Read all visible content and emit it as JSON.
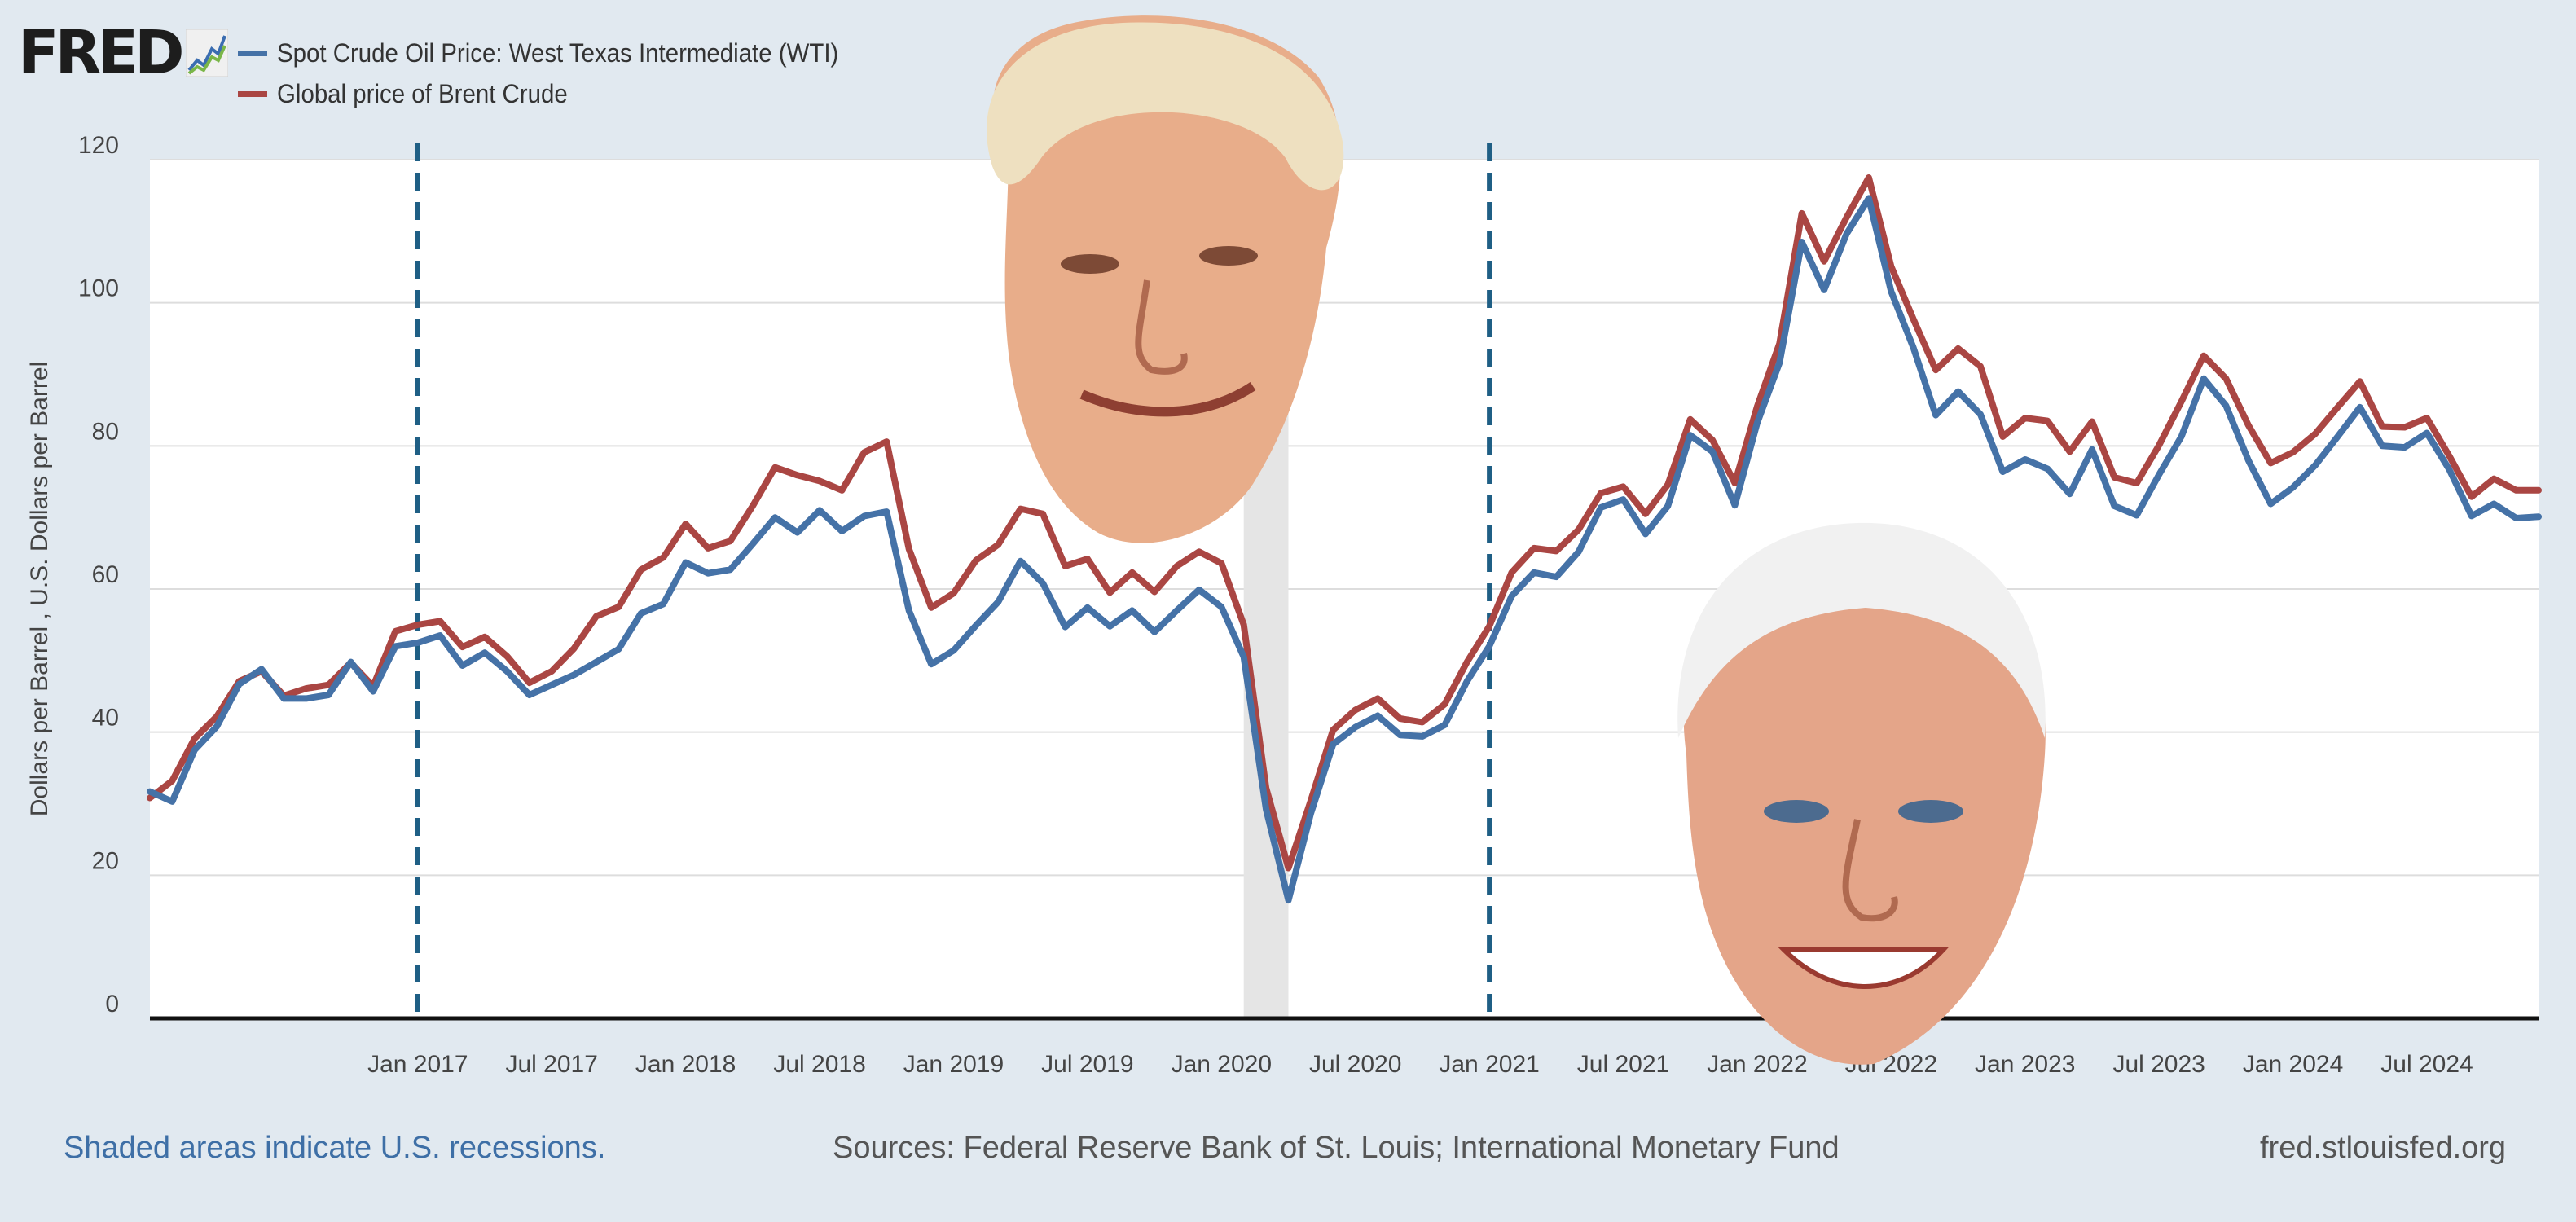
{
  "brand": {
    "name": "FRED"
  },
  "colors": {
    "wti": "#4572a7",
    "brent": "#aa4643",
    "recession": "#e5e5e5",
    "marker": "#1f5f85",
    "grid": "#dddddd",
    "source_link": "#3e6fa6",
    "text": "#444444"
  },
  "chart_data": {
    "type": "line",
    "title": "",
    "ylabel": "Dollars per Barrel , U.S. Dollars per Barrel",
    "xlabel": "",
    "ylim": [
      0,
      120
    ],
    "yticks": [
      "0",
      "20",
      "40",
      "60",
      "80",
      "100",
      "120"
    ],
    "xticks": [
      {
        "date": "2017-01",
        "label": "Jan 2017"
      },
      {
        "date": "2017-07",
        "label": "Jul 2017"
      },
      {
        "date": "2018-01",
        "label": "Jan 2018"
      },
      {
        "date": "2018-07",
        "label": "Jul 2018"
      },
      {
        "date": "2019-01",
        "label": "Jan 2019"
      },
      {
        "date": "2019-07",
        "label": "Jul 2019"
      },
      {
        "date": "2020-01",
        "label": "Jan 2020"
      },
      {
        "date": "2020-07",
        "label": "Jul 2020"
      },
      {
        "date": "2021-01",
        "label": "Jan 2021"
      },
      {
        "date": "2021-07",
        "label": "Jul 2021"
      },
      {
        "date": "2022-01",
        "label": "Jan 2022"
      },
      {
        "date": "2022-07",
        "label": "Jul 2022"
      },
      {
        "date": "2023-01",
        "label": "Jan 2023"
      },
      {
        "date": "2023-07",
        "label": "Jul 2023"
      },
      {
        "date": "2024-01",
        "label": "Jan 2024"
      },
      {
        "date": "2024-07",
        "label": "Jul 2024"
      }
    ],
    "x": [
      "2016-01",
      "2016-02",
      "2016-03",
      "2016-04",
      "2016-05",
      "2016-06",
      "2016-07",
      "2016-08",
      "2016-09",
      "2016-10",
      "2016-11",
      "2016-12",
      "2017-01",
      "2017-02",
      "2017-03",
      "2017-04",
      "2017-05",
      "2017-06",
      "2017-07",
      "2017-08",
      "2017-09",
      "2017-10",
      "2017-11",
      "2017-12",
      "2018-01",
      "2018-02",
      "2018-03",
      "2018-04",
      "2018-05",
      "2018-06",
      "2018-07",
      "2018-08",
      "2018-09",
      "2018-10",
      "2018-11",
      "2018-12",
      "2019-01",
      "2019-02",
      "2019-03",
      "2019-04",
      "2019-05",
      "2019-06",
      "2019-07",
      "2019-08",
      "2019-09",
      "2019-10",
      "2019-11",
      "2019-12",
      "2020-01",
      "2020-02",
      "2020-03",
      "2020-04",
      "2020-05",
      "2020-06",
      "2020-07",
      "2020-08",
      "2020-09",
      "2020-10",
      "2020-11",
      "2020-12",
      "2021-01",
      "2021-02",
      "2021-03",
      "2021-04",
      "2021-05",
      "2021-06",
      "2021-07",
      "2021-08",
      "2021-09",
      "2021-10",
      "2021-11",
      "2021-12",
      "2022-01",
      "2022-02",
      "2022-03",
      "2022-04",
      "2022-05",
      "2022-06",
      "2022-07",
      "2022-08",
      "2022-09",
      "2022-10",
      "2022-11",
      "2022-12",
      "2023-01",
      "2023-02",
      "2023-03",
      "2023-04",
      "2023-05",
      "2023-06",
      "2023-07",
      "2023-08",
      "2023-09",
      "2023-10",
      "2023-11",
      "2023-12",
      "2024-01",
      "2024-02",
      "2024-03",
      "2024-04",
      "2024-05",
      "2024-06",
      "2024-07",
      "2024-08",
      "2024-09",
      "2024-10",
      "2024-11",
      "2024-12"
    ],
    "series": [
      {
        "name": "Spot Crude Oil Price: West Texas Intermediate (WTI)",
        "color": "#4572a7",
        "values": [
          31.7,
          30.3,
          37.5,
          40.8,
          46.7,
          48.8,
          44.7,
          44.7,
          45.2,
          49.8,
          45.7,
          52.0,
          52.5,
          53.5,
          49.3,
          51.1,
          48.5,
          45.2,
          46.6,
          48.0,
          49.8,
          51.6,
          56.6,
          57.9,
          63.7,
          62.2,
          62.7,
          66.3,
          70.0,
          67.9,
          71.0,
          68.1,
          70.2,
          70.8,
          57.0,
          49.5,
          51.4,
          54.9,
          58.2,
          63.9,
          60.8,
          54.7,
          57.4,
          54.8,
          57.0,
          54.0,
          57.0,
          59.9,
          57.5,
          50.5,
          29.2,
          16.5,
          28.6,
          38.3,
          40.7,
          42.3,
          39.6,
          39.4,
          41.0,
          47.1,
          52.0,
          59.0,
          62.3,
          61.7,
          65.2,
          71.4,
          72.5,
          67.7,
          71.6,
          81.5,
          79.2,
          71.7,
          83.2,
          91.6,
          108.5,
          101.8,
          109.6,
          114.6,
          101.6,
          93.7,
          84.3,
          87.6,
          84.4,
          76.4,
          78.1,
          76.8,
          73.3,
          79.5,
          71.6,
          70.3,
          76.0,
          81.3,
          89.4,
          85.6,
          78.0,
          71.9,
          74.2,
          77.3,
          81.3,
          85.4,
          80.0,
          79.8,
          81.8,
          76.7,
          70.2,
          71.9,
          69.9,
          70.1
        ]
      },
      {
        "name": "Global price of Brent Crude",
        "color": "#aa4643",
        "values": [
          30.8,
          33.2,
          39.1,
          42.2,
          47.1,
          48.5,
          45.1,
          46.1,
          46.6,
          49.7,
          46.4,
          54.1,
          55.0,
          55.5,
          51.9,
          53.3,
          50.6,
          46.9,
          48.5,
          51.7,
          56.2,
          57.5,
          62.7,
          64.4,
          69.1,
          65.7,
          66.7,
          71.6,
          77.0,
          75.9,
          75.1,
          73.8,
          79.1,
          80.6,
          65.6,
          57.4,
          59.4,
          64.0,
          66.2,
          71.2,
          70.5,
          63.2,
          64.2,
          59.5,
          62.3,
          59.6,
          63.2,
          65.2,
          63.6,
          55.0,
          32.2,
          21.0,
          30.4,
          40.3,
          43.1,
          44.7,
          41.9,
          41.4,
          43.9,
          49.8,
          54.8,
          62.3,
          65.7,
          65.3,
          68.3,
          73.4,
          74.3,
          70.5,
          74.6,
          83.7,
          80.8,
          74.8,
          85.5,
          94.3,
          112.5,
          105.8,
          111.9,
          117.5,
          105.1,
          97.7,
          90.6,
          93.6,
          91.1,
          81.3,
          83.9,
          83.5,
          79.2,
          83.4,
          75.6,
          74.8,
          80.1,
          86.2,
          92.6,
          89.4,
          82.9,
          77.6,
          79.1,
          81.7,
          85.4,
          89.0,
          82.7,
          82.6,
          83.9,
          78.6,
          72.9,
          75.4,
          73.8,
          73.8
        ]
      }
    ],
    "visible_x_range": [
      "2016-01",
      "2024-12"
    ],
    "recessions": [
      {
        "start": "2020-02",
        "end": "2020-04"
      }
    ],
    "markers": [
      {
        "date": "2017-01"
      },
      {
        "date": "2021-01"
      }
    ],
    "grid": true,
    "legend_position": "top-left"
  },
  "footer": {
    "recession_note": "Shaded areas indicate U.S. recessions.",
    "sources": "Sources: Federal Reserve Bank of St. Louis; International Monetary Fund",
    "website": "fred.stlouisfed.org"
  }
}
